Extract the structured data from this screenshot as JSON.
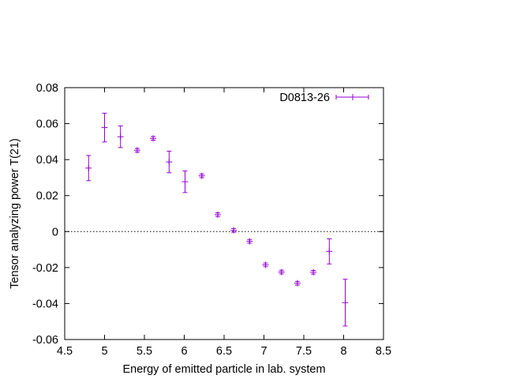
{
  "chart_data": {
    "type": "scatter",
    "xlabel": "Energy of emitted particle in lab. system",
    "ylabel": "Tensor analyzing power T(21)",
    "xlim": [
      4.5,
      8.5
    ],
    "ylim": [
      -0.06,
      0.08
    ],
    "xticks": [
      4.5,
      5,
      5.5,
      6,
      6.5,
      7,
      7.5,
      8,
      8.5
    ],
    "xtick_labels": [
      "4.5",
      "5",
      "5.5",
      "6",
      "6.5",
      "7",
      "7.5",
      "8",
      "8.5"
    ],
    "yticks": [
      -0.06,
      -0.04,
      -0.02,
      0,
      0.02,
      0.04,
      0.06,
      0.08
    ],
    "ytick_labels": [
      "-0.06",
      "-0.04",
      "-0.02",
      "0",
      "0.02",
      "0.04",
      "0.06",
      "0.08"
    ],
    "grid": false,
    "zero_line": true,
    "legend_position": "top-right",
    "color": "#9400d3",
    "series": [
      {
        "name": "D0813-26",
        "points": [
          {
            "x": 4.8,
            "y": 0.0353,
            "err": 0.007
          },
          {
            "x": 5.0,
            "y": 0.0578,
            "err": 0.008
          },
          {
            "x": 5.2,
            "y": 0.0527,
            "err": 0.006
          },
          {
            "x": 5.41,
            "y": 0.0452,
            "err": 0.001
          },
          {
            "x": 5.61,
            "y": 0.0518,
            "err": 0.001
          },
          {
            "x": 5.81,
            "y": 0.0387,
            "err": 0.006
          },
          {
            "x": 6.01,
            "y": 0.0277,
            "err": 0.006
          },
          {
            "x": 6.22,
            "y": 0.031,
            "err": 0.001
          },
          {
            "x": 6.42,
            "y": 0.0094,
            "err": 0.001
          },
          {
            "x": 6.62,
            "y": 0.0007,
            "err": 0.001
          },
          {
            "x": 6.82,
            "y": -0.0054,
            "err": 0.001
          },
          {
            "x": 7.02,
            "y": -0.0185,
            "err": 0.001
          },
          {
            "x": 7.22,
            "y": -0.0225,
            "err": 0.001
          },
          {
            "x": 7.42,
            "y": -0.0287,
            "err": 0.001
          },
          {
            "x": 7.62,
            "y": -0.0226,
            "err": 0.001
          },
          {
            "x": 7.82,
            "y": -0.011,
            "err": 0.007
          },
          {
            "x": 8.02,
            "y": -0.0395,
            "err": 0.013
          }
        ]
      }
    ]
  }
}
